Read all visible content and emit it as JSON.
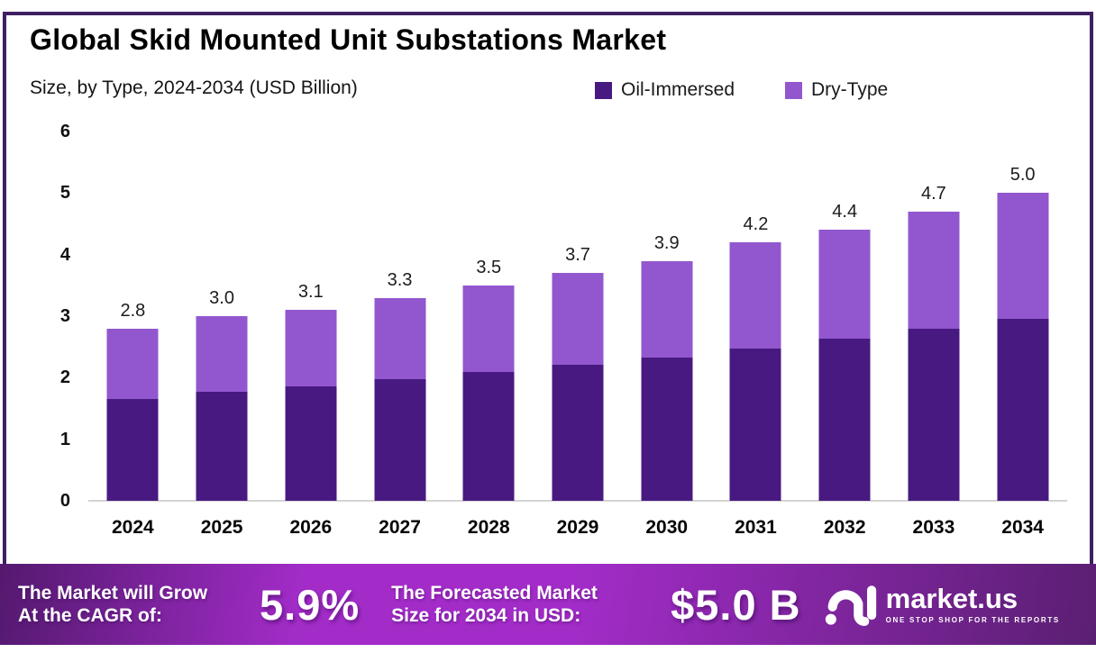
{
  "title": "Global Skid Mounted Unit Substations Market",
  "subtitle": "Size, by Type, 2024-2034 (USD Billion)",
  "colors": {
    "oil_immersed": "#481981",
    "dry_type": "#9257CE",
    "frame_border": "#3E1F63",
    "axis_line": "#d4d4d4",
    "banner_gradient": [
      "#54196F",
      "#A32CC9",
      "#5A1F72"
    ],
    "text_dark": "#101010",
    "banner_text": "#ffffff"
  },
  "chart_data": {
    "type": "bar",
    "stacked": true,
    "title": "Global Skid Mounted Unit Substations Market",
    "subtitle": "Size, by Type, 2024-2034 (USD Billion)",
    "categories": [
      "2024",
      "2025",
      "2026",
      "2027",
      "2028",
      "2029",
      "2030",
      "2031",
      "2032",
      "2033",
      "2034"
    ],
    "series": [
      {
        "name": "Oil-Immersed",
        "color": "#481981",
        "values": [
          1.65,
          1.77,
          1.86,
          1.97,
          2.09,
          2.21,
          2.33,
          2.48,
          2.63,
          2.79,
          2.95
        ]
      },
      {
        "name": "Dry-Type",
        "color": "#9257CE",
        "values": [
          1.15,
          1.23,
          1.24,
          1.33,
          1.41,
          1.49,
          1.57,
          1.72,
          1.77,
          1.91,
          2.05
        ]
      }
    ],
    "totals": [
      "2.8",
      "3.0",
      "3.1",
      "3.3",
      "3.5",
      "3.7",
      "3.9",
      "4.2",
      "4.4",
      "4.7",
      "5.0"
    ],
    "total_values": [
      2.8,
      3.0,
      3.1,
      3.3,
      3.5,
      3.7,
      3.9,
      4.2,
      4.4,
      4.7,
      5.0
    ],
    "xlabel": "",
    "ylabel": "",
    "ylim": [
      0,
      6
    ],
    "yticks": [
      "0",
      "1",
      "2",
      "3",
      "4",
      "5",
      "6"
    ],
    "grid": false,
    "legend_position": "top-right",
    "data_labels": "total above each stacked bar"
  },
  "banner": {
    "cagr_line1": "The Market will Grow",
    "cagr_line2": "At the CAGR of:",
    "cagr_value": "5.9%",
    "forecast_line1": "The Forecasted Market",
    "forecast_line2": "Size for 2034 in USD:",
    "forecast_value": "$5.0 B",
    "logo_text": "market.us",
    "logo_tagline": "ONE STOP SHOP FOR THE REPORTS"
  }
}
